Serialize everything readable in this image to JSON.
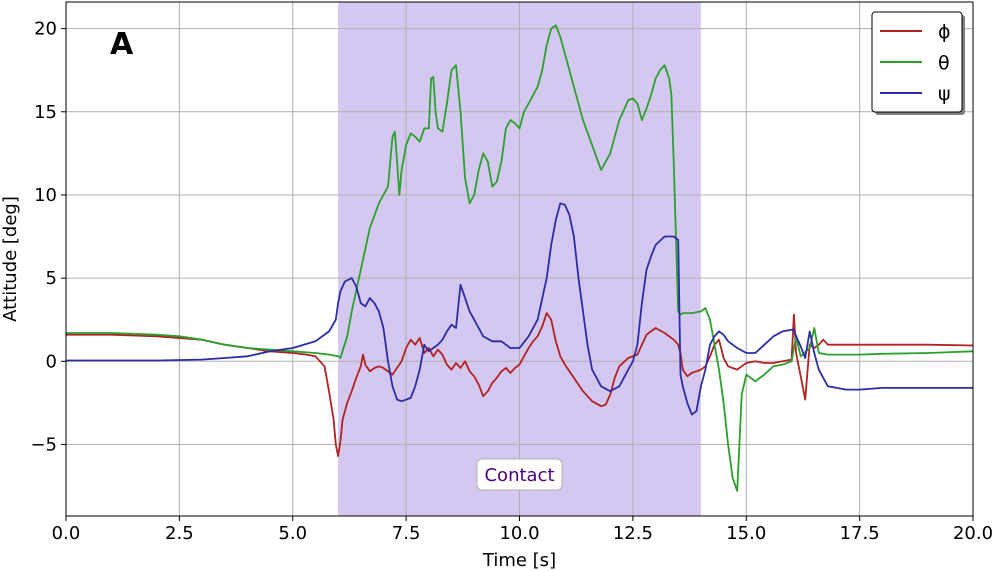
{
  "chart_data": {
    "type": "line",
    "panel_label": "A",
    "xlabel": "Time [s]",
    "ylabel": "Attitude [deg]",
    "xlim": [
      0,
      20
    ],
    "ylim": [
      -9.3,
      21.6
    ],
    "x_ticks": [
      0,
      2.5,
      5,
      7.5,
      10,
      12.5,
      15,
      17.5,
      20
    ],
    "x_tick_labels": [
      "0.0",
      "2.5",
      "5.0",
      "7.5",
      "10.0",
      "12.5",
      "15.0",
      "17.5",
      "20.0"
    ],
    "y_ticks": [
      -5,
      0,
      5,
      10,
      15,
      20
    ],
    "y_tick_labels": [
      "−5",
      "0",
      "5",
      "10",
      "15",
      "20"
    ],
    "grid": true,
    "legend_position": "top-right",
    "shaded_region": {
      "x_start": 6.0,
      "x_end": 14.0,
      "label": "Contact",
      "color": "#d4c8f0"
    },
    "series": [
      {
        "name": "ϕ",
        "color": "#b22222",
        "x": [
          0,
          1,
          2,
          3,
          3.5,
          4,
          4.5,
          5,
          5.3,
          5.5,
          5.7,
          5.8,
          5.9,
          5.95,
          6.0,
          6.05,
          6.1,
          6.2,
          6.3,
          6.4,
          6.5,
          6.55,
          6.6,
          6.7,
          6.8,
          6.9,
          7.0,
          7.2,
          7.4,
          7.5,
          7.6,
          7.7,
          7.8,
          7.9,
          8.0,
          8.1,
          8.2,
          8.3,
          8.4,
          8.5,
          8.6,
          8.7,
          8.8,
          8.9,
          9.0,
          9.1,
          9.2,
          9.3,
          9.4,
          9.5,
          9.6,
          9.7,
          9.8,
          9.9,
          10.0,
          10.1,
          10.2,
          10.3,
          10.4,
          10.5,
          10.6,
          10.65,
          10.7,
          10.8,
          10.9,
          11.0,
          11.2,
          11.4,
          11.6,
          11.8,
          11.9,
          12.0,
          12.1,
          12.2,
          12.4,
          12.6,
          12.8,
          13.0,
          13.2,
          13.4,
          13.5,
          13.55,
          13.6,
          13.7,
          13.8,
          13.9,
          14.0,
          14.1,
          14.2,
          14.3,
          14.4,
          14.5,
          14.6,
          14.7,
          14.8,
          14.9,
          15.0,
          15.2,
          15.4,
          15.6,
          15.8,
          16.0,
          16.05,
          16.1,
          16.2,
          16.3,
          16.4,
          16.5,
          16.6,
          16.7,
          16.8,
          17.0,
          17.5,
          18.0,
          19.0,
          20.0
        ],
        "y": [
          1.6,
          1.6,
          1.5,
          1.3,
          1.0,
          0.8,
          0.6,
          0.5,
          0.4,
          0.3,
          -0.3,
          -1.8,
          -3.5,
          -5.0,
          -5.7,
          -4.8,
          -3.5,
          -2.5,
          -1.8,
          -1.0,
          -0.3,
          0.4,
          -0.2,
          -0.6,
          -0.4,
          -0.3,
          -0.4,
          -0.8,
          0.0,
          0.8,
          1.3,
          1.0,
          1.4,
          0.5,
          0.8,
          0.3,
          0.7,
          0.4,
          -0.2,
          -0.5,
          -0.1,
          -0.4,
          0.0,
          -0.6,
          -0.9,
          -1.4,
          -2.1,
          -1.8,
          -1.3,
          -1.0,
          -0.6,
          -0.4,
          -0.7,
          -0.4,
          -0.2,
          0.3,
          0.8,
          1.2,
          1.5,
          2.1,
          2.9,
          2.7,
          2.5,
          1.2,
          0.3,
          -0.2,
          -1.0,
          -1.8,
          -2.4,
          -2.7,
          -2.6,
          -2.0,
          -1.0,
          -0.3,
          0.2,
          0.4,
          1.6,
          2.0,
          1.7,
          1.3,
          1.0,
          0.5,
          -0.5,
          -0.9,
          -0.7,
          -0.6,
          -0.5,
          -0.3,
          0.3,
          1.0,
          1.3,
          0.2,
          -0.3,
          -0.4,
          -0.5,
          -0.3,
          -0.1,
          0.0,
          -0.1,
          -0.1,
          0.0,
          0.1,
          2.8,
          0.5,
          -0.9,
          -2.3,
          1.0,
          0.8,
          1.0,
          1.3,
          1.0,
          1.0,
          1.0,
          1.0,
          1.0,
          0.95
        ]
      },
      {
        "name": "θ",
        "color": "#2ca02c",
        "x": [
          0,
          1,
          2,
          2.5,
          3,
          3.5,
          4,
          4.5,
          5,
          5.5,
          5.8,
          6.0,
          6.05,
          6.2,
          6.3,
          6.5,
          6.7,
          6.9,
          7.0,
          7.1,
          7.2,
          7.25,
          7.3,
          7.35,
          7.4,
          7.5,
          7.6,
          7.7,
          7.8,
          7.9,
          8.0,
          8.05,
          8.1,
          8.15,
          8.2,
          8.3,
          8.4,
          8.5,
          8.6,
          8.7,
          8.8,
          8.9,
          9.0,
          9.1,
          9.2,
          9.3,
          9.4,
          9.5,
          9.6,
          9.7,
          9.8,
          9.9,
          10.0,
          10.1,
          10.2,
          10.3,
          10.4,
          10.5,
          10.6,
          10.7,
          10.8,
          10.9,
          11.0,
          11.2,
          11.4,
          11.6,
          11.8,
          12.0,
          12.2,
          12.4,
          12.5,
          12.6,
          12.7,
          12.8,
          12.9,
          13.0,
          13.1,
          13.2,
          13.3,
          13.35,
          13.4,
          13.5,
          13.55,
          13.6,
          13.8,
          14.0,
          14.1,
          14.2,
          14.3,
          14.4,
          14.5,
          14.6,
          14.7,
          14.8,
          14.85,
          14.9,
          15.0,
          15.2,
          15.4,
          15.6,
          15.8,
          16.0,
          16.1,
          16.2,
          16.4,
          16.5,
          16.6,
          16.8,
          17.0,
          17.5,
          18.0,
          19.0,
          20.0
        ],
        "y": [
          1.7,
          1.7,
          1.6,
          1.5,
          1.3,
          1.0,
          0.8,
          0.7,
          0.6,
          0.5,
          0.4,
          0.3,
          0.2,
          1.5,
          3.0,
          5.5,
          8.0,
          9.5,
          10.0,
          10.5,
          13.5,
          13.8,
          12.0,
          10.0,
          11.5,
          13.0,
          13.7,
          13.5,
          13.2,
          14.0,
          14.0,
          17.0,
          17.1,
          15.0,
          14.0,
          13.8,
          15.5,
          17.5,
          17.8,
          15.0,
          11.0,
          9.5,
          10.0,
          11.5,
          12.5,
          12.0,
          10.5,
          10.8,
          12.0,
          14.0,
          14.5,
          14.3,
          14.0,
          15.0,
          15.5,
          16.0,
          16.5,
          17.5,
          19.0,
          20.0,
          20.2,
          19.5,
          18.5,
          16.5,
          14.5,
          13.0,
          11.5,
          12.5,
          14.5,
          15.7,
          15.8,
          15.5,
          14.5,
          15.2,
          16.0,
          17.0,
          17.5,
          17.8,
          17.0,
          16.0,
          12.0,
          3.0,
          2.8,
          2.9,
          2.9,
          3.0,
          3.2,
          2.5,
          1.0,
          -0.5,
          -2.5,
          -5.0,
          -7.0,
          -7.8,
          -5.0,
          -2.0,
          -0.8,
          -1.2,
          -0.8,
          -0.3,
          -0.2,
          0.0,
          1.5,
          0.3,
          0.8,
          2.0,
          0.5,
          0.4,
          0.4,
          0.4,
          0.45,
          0.5,
          0.6
        ]
      },
      {
        "name": "ψ",
        "color": "#2c2ca8",
        "x": [
          0,
          1,
          2,
          3,
          3.5,
          4,
          4.5,
          5,
          5.5,
          5.8,
          5.95,
          6.0,
          6.05,
          6.15,
          6.3,
          6.4,
          6.5,
          6.6,
          6.7,
          6.8,
          6.9,
          7.0,
          7.1,
          7.2,
          7.3,
          7.4,
          7.5,
          7.6,
          7.7,
          7.8,
          7.9,
          8.0,
          8.1,
          8.2,
          8.3,
          8.4,
          8.5,
          8.6,
          8.7,
          8.8,
          8.9,
          9.0,
          9.2,
          9.4,
          9.6,
          9.8,
          10.0,
          10.2,
          10.4,
          10.6,
          10.7,
          10.8,
          10.9,
          11.0,
          11.1,
          11.2,
          11.3,
          11.4,
          11.5,
          11.6,
          11.8,
          12.0,
          12.2,
          12.4,
          12.5,
          12.6,
          12.7,
          12.8,
          12.9,
          13.0,
          13.2,
          13.4,
          13.5,
          13.55,
          13.6,
          13.7,
          13.8,
          13.9,
          14.0,
          14.1,
          14.2,
          14.3,
          14.4,
          14.5,
          14.6,
          14.8,
          15.0,
          15.2,
          15.4,
          15.6,
          15.8,
          16.0,
          16.05,
          16.1,
          16.2,
          16.3,
          16.4,
          16.5,
          16.6,
          16.7,
          16.8,
          17.0,
          17.2,
          17.5,
          18.0,
          19.0,
          20.0
        ],
        "y": [
          0.05,
          0.05,
          0.05,
          0.1,
          0.2,
          0.3,
          0.6,
          0.8,
          1.2,
          1.8,
          2.5,
          3.5,
          4.2,
          4.8,
          5.0,
          4.5,
          3.5,
          3.3,
          3.8,
          3.5,
          3.0,
          2.0,
          0.0,
          -1.5,
          -2.3,
          -2.4,
          -2.3,
          -2.2,
          -1.5,
          -0.5,
          1.0,
          0.6,
          0.8,
          1.0,
          1.3,
          1.8,
          2.2,
          2.0,
          4.6,
          3.8,
          3.0,
          2.5,
          1.5,
          1.2,
          1.2,
          0.8,
          0.8,
          1.5,
          2.5,
          5.0,
          7.0,
          8.5,
          9.5,
          9.4,
          8.8,
          7.5,
          5.0,
          3.0,
          1.0,
          -0.5,
          -1.5,
          -1.8,
          -1.5,
          -0.5,
          0.0,
          1.0,
          3.5,
          5.5,
          6.3,
          7.0,
          7.5,
          7.5,
          7.3,
          -0.8,
          -1.5,
          -2.5,
          -3.2,
          -3.0,
          -1.5,
          -0.5,
          1.0,
          1.5,
          1.8,
          1.6,
          1.2,
          0.8,
          0.5,
          0.5,
          1.0,
          1.5,
          1.8,
          1.9,
          1.9,
          1.5,
          0.9,
          0.2,
          1.8,
          0.5,
          -0.5,
          -1.0,
          -1.5,
          -1.6,
          -1.7,
          -1.7,
          -1.6,
          -1.6,
          -1.6
        ]
      }
    ]
  }
}
